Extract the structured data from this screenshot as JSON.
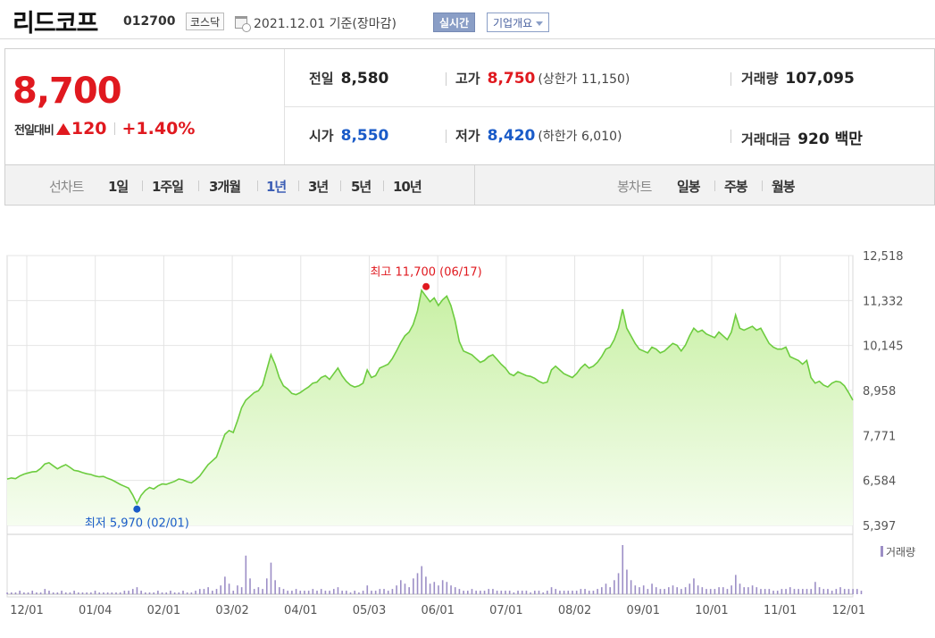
{
  "header": {
    "name": "리드코프",
    "code": "012700",
    "market": "코스닥",
    "date": "2021.12.01 기준(장마감)",
    "realtime_label": "실시간",
    "company_label": "기업개요"
  },
  "quote": {
    "price": "8,700",
    "change_label": "전일대비",
    "change": "120",
    "change_pct": "+1.40%",
    "prev_label": "전일",
    "prev": "8,580",
    "open_label": "시가",
    "open": "8,550",
    "high_label": "고가",
    "high": "8,750",
    "upper_limit": "(상한가 11,150)",
    "low_label": "저가",
    "low": "8,420",
    "lower_limit": "(하한가 6,010)",
    "volume_label": "거래량",
    "volume": "107,095",
    "amount_label": "거래대금",
    "amount": "920 백만"
  },
  "nav": {
    "line_chart_label": "선차트",
    "periods": [
      "1일",
      "1주일",
      "3개월",
      "1년",
      "3년",
      "5년",
      "10년"
    ],
    "active_period": "1년",
    "candle_label": "봉차트",
    "candles": [
      "일봉",
      "주봉",
      "월봉"
    ]
  },
  "colors": {
    "up": "#e0191f",
    "down": "#1a5bc8",
    "line": "#6dcc3f",
    "area_top": "#c8f0a4",
    "area_bottom": "#f6fdf0",
    "volume_bar": "#9c8ec6"
  },
  "chart_data": {
    "type": "area",
    "ylim": [
      5397,
      12518
    ],
    "y_ticks": [
      "12,518",
      "11,332",
      "10,145",
      "8,958",
      "7,771",
      "6,584",
      "5,397"
    ],
    "x_ticks": [
      "12/01",
      "01/04",
      "02/01",
      "03/02",
      "04/01",
      "05/03",
      "06/01",
      "07/01",
      "08/02",
      "09/01",
      "10/01",
      "11/01",
      "12/01"
    ],
    "high_annotation": "최고 11,700 (06/17)",
    "high_value": 11700,
    "low_annotation": "최저 5,970 (02/01)",
    "low_value": 5970,
    "volume_label": "거래량",
    "price": [
      6620,
      6650,
      6630,
      6700,
      6750,
      6780,
      6810,
      6820,
      6900,
      7020,
      7050,
      6970,
      6890,
      6950,
      7000,
      6930,
      6850,
      6830,
      6790,
      6760,
      6740,
      6700,
      6680,
      6690,
      6640,
      6600,
      6540,
      6480,
      6430,
      6380,
      6200,
      5970,
      6190,
      6320,
      6400,
      6360,
      6440,
      6490,
      6480,
      6520,
      6560,
      6620,
      6600,
      6550,
      6520,
      6600,
      6700,
      6850,
      7000,
      7100,
      7200,
      7500,
      7800,
      7900,
      7850,
      8150,
      8500,
      8700,
      8800,
      8900,
      8950,
      9100,
      9500,
      9900,
      9650,
      9300,
      9080,
      9000,
      8880,
      8850,
      8900,
      8980,
      9050,
      9150,
      9180,
      9300,
      9350,
      9250,
      9400,
      9550,
      9350,
      9200,
      9100,
      9050,
      9080,
      9150,
      9500,
      9300,
      9350,
      9550,
      9600,
      9650,
      9800,
      10000,
      10220,
      10400,
      10500,
      10700,
      11050,
      11600,
      11450,
      11300,
      11400,
      11200,
      11350,
      11450,
      11200,
      10800,
      10250,
      10000,
      9950,
      9900,
      9800,
      9700,
      9750,
      9850,
      9900,
      9780,
      9650,
      9550,
      9400,
      9350,
      9450,
      9400,
      9350,
      9330,
      9280,
      9200,
      9150,
      9180,
      9500,
      9600,
      9500,
      9400,
      9350,
      9300,
      9400,
      9550,
      9650,
      9550,
      9600,
      9700,
      9850,
      10050,
      10100,
      10300,
      10600,
      11100,
      10600,
      10400,
      10200,
      10050,
      10000,
      9950,
      10100,
      10050,
      9950,
      10000,
      10100,
      10200,
      10150,
      10000,
      10150,
      10400,
      10600,
      10500,
      10550,
      10450,
      10400,
      10350,
      10500,
      10400,
      10300,
      10500,
      10950,
      10600,
      10550,
      10600,
      10650,
      10550,
      10600,
      10400,
      10200,
      10100,
      10050,
      10050,
      10100,
      9850,
      9800,
      9750,
      9650,
      9750,
      9300,
      9150,
      9200,
      9100,
      9050,
      9150,
      9200,
      9180,
      9080,
      8900,
      8700
    ],
    "volume": [
      1,
      1,
      1,
      2,
      1,
      1,
      2,
      1,
      1,
      3,
      2,
      1,
      1,
      2,
      1,
      1,
      2,
      1,
      1,
      1,
      1,
      2,
      1,
      1,
      1,
      1,
      1,
      1,
      2,
      2,
      3,
      4,
      2,
      1,
      1,
      1,
      2,
      1,
      1,
      2,
      1,
      1,
      2,
      1,
      1,
      2,
      3,
      3,
      4,
      2,
      3,
      5,
      10,
      6,
      2,
      5,
      4,
      22,
      9,
      3,
      4,
      3,
      9,
      18,
      8,
      4,
      3,
      2,
      2,
      3,
      2,
      2,
      2,
      3,
      2,
      3,
      2,
      2,
      3,
      4,
      2,
      2,
      1,
      2,
      1,
      2,
      5,
      2,
      2,
      3,
      3,
      2,
      3,
      5,
      8,
      6,
      4,
      9,
      12,
      16,
      10,
      6,
      7,
      5,
      8,
      7,
      5,
      4,
      3,
      2,
      2,
      3,
      2,
      2,
      2,
      3,
      3,
      2,
      2,
      2,
      2,
      1,
      2,
      2,
      2,
      1,
      2,
      2,
      1,
      2,
      4,
      3,
      2,
      2,
      2,
      2,
      2,
      3,
      3,
      2,
      2,
      3,
      4,
      6,
      4,
      8,
      12,
      28,
      14,
      8,
      5,
      4,
      5,
      3,
      6,
      4,
      3,
      3,
      4,
      5,
      4,
      3,
      4,
      6,
      9,
      5,
      4,
      3,
      3,
      3,
      4,
      4,
      3,
      5,
      11,
      6,
      4,
      4,
      5,
      4,
      3,
      3,
      3,
      2,
      2,
      3,
      3,
      4,
      3,
      3,
      3,
      3,
      3,
      7,
      4,
      3,
      3,
      2,
      3,
      4,
      3,
      3,
      3,
      3,
      2
    ]
  }
}
